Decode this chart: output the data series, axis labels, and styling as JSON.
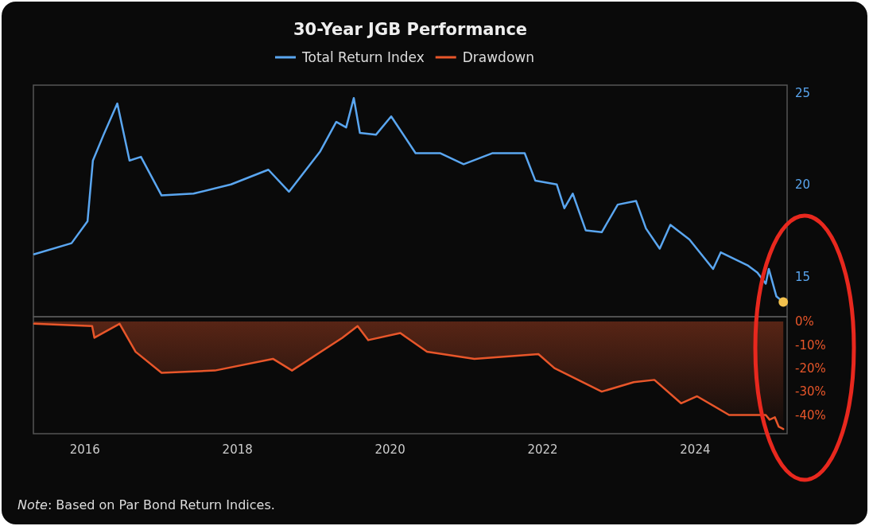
{
  "chart_data": [
    {
      "type": "line",
      "title": "30-Year JGB Performance",
      "legend": "top",
      "tick_labels": "y",
      "xlim": [
        2015.33,
        2025.21
      ],
      "xticks": [
        2016,
        2018,
        2020,
        2022,
        2024
      ],
      "ylim": [
        12.8,
        25.4
      ],
      "yticks": [
        15,
        20,
        25
      ],
      "series": [
        {
          "name": "Total Return Index",
          "color": "#5aa6f0",
          "x": [
            2015.34,
            2015.83,
            2016.04,
            2016.11,
            2016.25,
            2016.43,
            2016.59,
            2016.74,
            2017.01,
            2017.43,
            2017.92,
            2018.41,
            2018.68,
            2019.09,
            2019.3,
            2019.43,
            2019.53,
            2019.61,
            2019.82,
            2020.02,
            2020.34,
            2020.66,
            2020.97,
            2021.35,
            2021.77,
            2021.91,
            2022.19,
            2022.29,
            2022.4,
            2022.57,
            2022.78,
            2022.99,
            2023.23,
            2023.36,
            2023.54,
            2023.68,
            2023.93,
            2024.24,
            2024.34,
            2024.69,
            2024.82,
            2024.93,
            2024.97,
            2025.07,
            2025.16
          ],
          "values": [
            16.2,
            16.8,
            18.0,
            21.3,
            22.7,
            24.4,
            21.3,
            21.5,
            19.4,
            19.5,
            20.0,
            20.8,
            19.6,
            21.8,
            23.4,
            23.1,
            24.7,
            22.8,
            22.7,
            23.7,
            21.7,
            21.7,
            21.1,
            21.7,
            21.7,
            20.2,
            20.0,
            18.7,
            19.5,
            17.5,
            17.4,
            18.9,
            19.1,
            17.6,
            16.5,
            17.8,
            17.0,
            15.4,
            16.3,
            15.6,
            15.2,
            14.6,
            15.4,
            13.9,
            13.6
          ]
        },
        {
          "type": "scatter",
          "color": "#f2c14e",
          "marker": "circle",
          "x": [
            2025.16
          ],
          "values": [
            13.6
          ]
        }
      ]
    },
    {
      "type": "area",
      "legend": "top",
      "xlim": [
        2015.33,
        2025.21
      ],
      "xticks": [
        2016,
        2018,
        2020,
        2022,
        2024
      ],
      "ylim": [
        -48,
        2
      ],
      "yticks": [
        {
          "value": 0,
          "label": "0%"
        },
        {
          "value": -10,
          "label": "-10%"
        },
        {
          "value": -20,
          "label": "-20%"
        },
        {
          "value": -30,
          "label": "-30%"
        },
        {
          "value": -40,
          "label": "-40%"
        }
      ],
      "annotations": [
        "Note: Based on Par Bond Return Indices."
      ],
      "series": [
        {
          "name": "Drawdown",
          "color": "#e8562a",
          "x": [
            2015.34,
            2016.1,
            2016.13,
            2016.46,
            2016.67,
            2017.01,
            2017.71,
            2018.47,
            2018.72,
            2019.38,
            2019.58,
            2019.72,
            2020.14,
            2020.49,
            2021.11,
            2021.95,
            2022.16,
            2022.78,
            2023.2,
            2023.47,
            2023.82,
            2024.03,
            2024.45,
            2024.93,
            2024.98,
            2025.05,
            2025.1,
            2025.16
          ],
          "values": [
            -1,
            -2,
            -7,
            -1,
            -13,
            -22,
            -21,
            -16,
            -21,
            -7,
            -2,
            -8,
            -5,
            -13,
            -16,
            -14,
            -20,
            -30,
            -26,
            -25,
            -35,
            -32,
            -40,
            -40,
            -42,
            -41,
            -45,
            -46
          ]
        }
      ]
    }
  ]
}
